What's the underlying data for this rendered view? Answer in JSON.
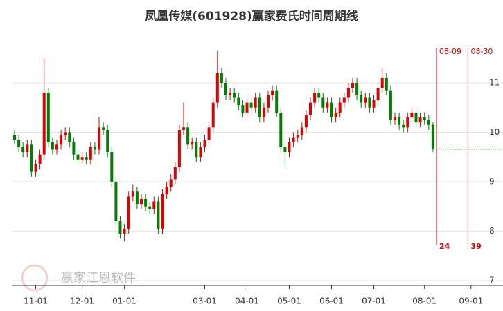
{
  "chart_data": {
    "type": "candlestick",
    "title": "凤凰传媒(601928)赢家费氏时间周期线",
    "watermark": "赢家江恩软件",
    "categories": [
      null,
      null,
      null,
      null,
      null,
      "11-01",
      null,
      null,
      null,
      null,
      null,
      null,
      null,
      null,
      null,
      null,
      "12-01",
      null,
      null,
      null,
      null,
      null,
      null,
      null,
      null,
      null,
      "01-01",
      null,
      null,
      null,
      null,
      null,
      null,
      null,
      null,
      null,
      null,
      null,
      null,
      null,
      null,
      null,
      null,
      null,
      null,
      "03-01",
      null,
      null,
      null,
      null,
      null,
      null,
      null,
      null,
      null,
      "04-01",
      null,
      null,
      null,
      null,
      null,
      null,
      null,
      null,
      null,
      "05-01",
      null,
      null,
      null,
      null,
      null,
      null,
      null,
      null,
      null,
      "06-01",
      null,
      null,
      null,
      null,
      null,
      null,
      null,
      null,
      null,
      "07-01",
      null,
      null,
      null,
      null,
      null,
      null,
      null,
      null,
      null,
      null,
      null,
      "08-01",
      null,
      null,
      null,
      null,
      null,
      null,
      null,
      null,
      null,
      null,
      "09-01",
      null
    ],
    "open": [
      9.95,
      9.85,
      9.7,
      9.6,
      9.75,
      9.2,
      9.35,
      9.55,
      10.8,
      9.8,
      9.65,
      9.75,
      9.95,
      10.0,
      9.8,
      9.55,
      9.45,
      9.5,
      9.45,
      9.7,
      9.65,
      10.1,
      10.05,
      9.6,
      9.0,
      8.2,
      7.95,
      8.05,
      8.7,
      8.8,
      8.55,
      8.65,
      8.5,
      8.45,
      8.6,
      8.05,
      8.75,
      8.9,
      9.05,
      9.3,
      10.05,
      10.1,
      9.75,
      9.8,
      9.5,
      9.7,
      9.85,
      10.1,
      10.6,
      11.2,
      11.0,
      10.75,
      10.8,
      10.7,
      10.55,
      10.4,
      10.6,
      10.5,
      10.7,
      10.3,
      10.5,
      10.75,
      10.85,
      10.4,
      9.7,
      9.6,
      9.8,
      9.9,
      9.95,
      10.1,
      10.35,
      10.6,
      10.8,
      10.7,
      10.5,
      10.6,
      10.3,
      10.4,
      10.6,
      10.7,
      10.9,
      11.0,
      10.75,
      10.6,
      10.7,
      10.5,
      10.65,
      10.9,
      11.1,
      10.85,
      10.25,
      10.3,
      10.15,
      10.1,
      10.3,
      10.4,
      10.2,
      10.3,
      10.25,
      10.15,
      null,
      null,
      null,
      null,
      null,
      null,
      null,
      null,
      null,
      null
    ],
    "high": [
      10.05,
      9.95,
      9.8,
      9.85,
      9.85,
      9.45,
      9.65,
      11.5,
      10.9,
      9.9,
      9.85,
      10.05,
      10.1,
      10.1,
      9.9,
      9.65,
      9.6,
      9.6,
      9.8,
      9.8,
      10.3,
      10.2,
      10.15,
      9.7,
      9.1,
      8.3,
      8.15,
      8.8,
      8.95,
      8.9,
      8.75,
      8.75,
      8.6,
      8.7,
      8.7,
      8.85,
      9.0,
      9.15,
      9.4,
      10.15,
      10.6,
      10.2,
      9.9,
      9.9,
      9.8,
      9.95,
      10.2,
      10.7,
      11.65,
      11.3,
      11.1,
      10.9,
      10.9,
      10.8,
      10.65,
      10.7,
      10.7,
      10.8,
      10.8,
      10.6,
      10.85,
      10.95,
      10.95,
      10.5,
      9.8,
      9.9,
      10.0,
      10.05,
      10.2,
      10.45,
      10.7,
      10.9,
      10.9,
      10.8,
      10.7,
      10.7,
      10.5,
      10.7,
      10.8,
      11.0,
      11.1,
      11.1,
      10.85,
      10.8,
      10.8,
      10.75,
      11.0,
      11.3,
      11.2,
      10.95,
      10.4,
      10.4,
      10.25,
      10.4,
      10.5,
      10.5,
      10.4,
      10.4,
      10.35,
      10.2,
      null,
      null,
      null,
      null,
      null,
      null,
      null,
      null,
      null,
      null
    ],
    "low": [
      9.75,
      9.6,
      9.5,
      9.5,
      9.1,
      9.1,
      9.25,
      9.45,
      9.7,
      9.55,
      9.55,
      9.65,
      9.85,
      9.7,
      9.45,
      9.35,
      9.35,
      9.35,
      9.35,
      9.55,
      9.55,
      9.95,
      9.5,
      8.9,
      8.1,
      7.85,
      7.8,
      7.95,
      8.6,
      8.45,
      8.45,
      8.4,
      8.35,
      8.35,
      7.95,
      7.95,
      8.65,
      8.8,
      8.95,
      9.2,
      9.95,
      9.65,
      9.65,
      9.4,
      9.4,
      9.6,
      9.75,
      10.0,
      10.5,
      10.9,
      10.65,
      10.65,
      10.6,
      10.45,
      10.3,
      10.3,
      10.4,
      10.4,
      10.2,
      10.2,
      10.4,
      10.65,
      10.3,
      9.6,
      9.3,
      9.5,
      9.7,
      9.8,
      9.85,
      10.0,
      10.25,
      10.5,
      10.6,
      10.4,
      10.4,
      10.2,
      10.2,
      10.3,
      10.5,
      10.6,
      10.8,
      10.65,
      10.5,
      10.5,
      10.4,
      10.4,
      10.55,
      10.8,
      10.75,
      10.15,
      10.15,
      10.05,
      10.0,
      10.0,
      10.2,
      10.1,
      10.1,
      10.15,
      10.05,
      9.6,
      null,
      null,
      null,
      null,
      null,
      null,
      null,
      null,
      null,
      null
    ],
    "close": [
      9.85,
      9.7,
      9.6,
      9.75,
      9.2,
      9.35,
      9.55,
      10.8,
      9.8,
      9.65,
      9.75,
      9.95,
      10.0,
      9.8,
      9.55,
      9.45,
      9.5,
      9.45,
      9.7,
      9.65,
      10.1,
      10.05,
      9.6,
      9.0,
      8.2,
      7.95,
      8.05,
      8.7,
      8.8,
      8.55,
      8.65,
      8.5,
      8.45,
      8.6,
      8.05,
      8.75,
      8.9,
      9.05,
      9.3,
      10.05,
      10.1,
      9.75,
      9.8,
      9.5,
      9.7,
      9.85,
      10.1,
      10.6,
      11.2,
      11.0,
      10.75,
      10.8,
      10.7,
      10.55,
      10.4,
      10.6,
      10.5,
      10.7,
      10.3,
      10.5,
      10.75,
      10.85,
      10.4,
      9.7,
      9.6,
      9.8,
      9.9,
      9.95,
      10.1,
      10.35,
      10.6,
      10.8,
      10.7,
      10.5,
      10.6,
      10.3,
      10.4,
      10.6,
      10.7,
      10.9,
      11.0,
      10.75,
      10.6,
      10.7,
      10.5,
      10.65,
      10.9,
      11.1,
      10.85,
      10.25,
      10.3,
      10.15,
      10.1,
      10.3,
      10.4,
      10.2,
      10.3,
      10.25,
      10.15,
      9.66,
      null,
      null,
      null,
      null,
      null,
      null,
      null,
      null,
      null,
      null
    ],
    "up_color": "#e00000",
    "down_color": "#008000",
    "ylim": [
      6.9,
      11.98
    ],
    "yticks": [
      7,
      8,
      9,
      10,
      11
    ],
    "grid": true,
    "cycle_lines": [
      {
        "date": "08-09",
        "count": 24
      },
      {
        "date": "08-30",
        "count": 39
      }
    ],
    "cycle_color": "#e00000",
    "reference_line": {
      "value": 9.66,
      "color": "#2ca02c"
    }
  }
}
